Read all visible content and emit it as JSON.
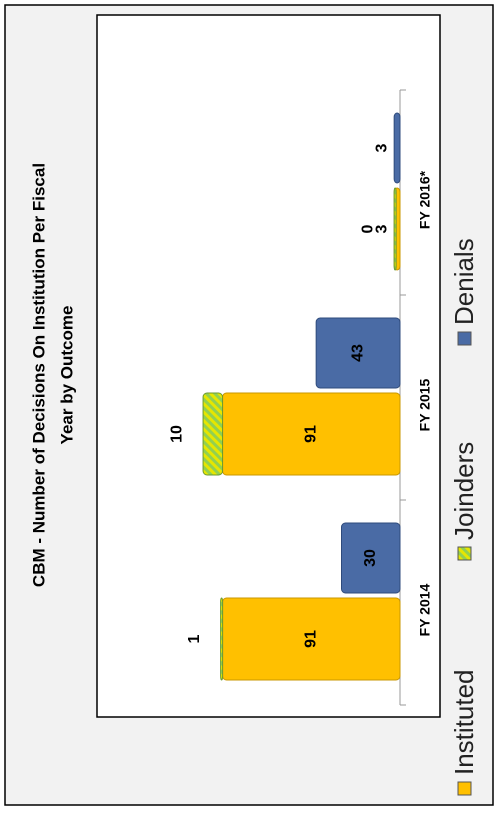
{
  "chart_data": {
    "type": "bar",
    "title": [
      "CBM - Number of Decisions On Institution Per Fiscal",
      "Year by Outcome"
    ],
    "categories": [
      "FY 2014",
      "FY 2015",
      "FY 2016*"
    ],
    "series": [
      {
        "name": "Instituted",
        "color": "#ffc000",
        "values": [
          91,
          91,
          3
        ],
        "stack": "a"
      },
      {
        "name": "Joinders",
        "color": "#92d050",
        "values": [
          1,
          10,
          0
        ],
        "stack": "a"
      },
      {
        "name": "Denials",
        "color": "#4a6ba5",
        "values": [
          30,
          43,
          3
        ],
        "stack": "b"
      }
    ],
    "ylim": [
      0,
      140
    ],
    "legend": "bottom"
  }
}
